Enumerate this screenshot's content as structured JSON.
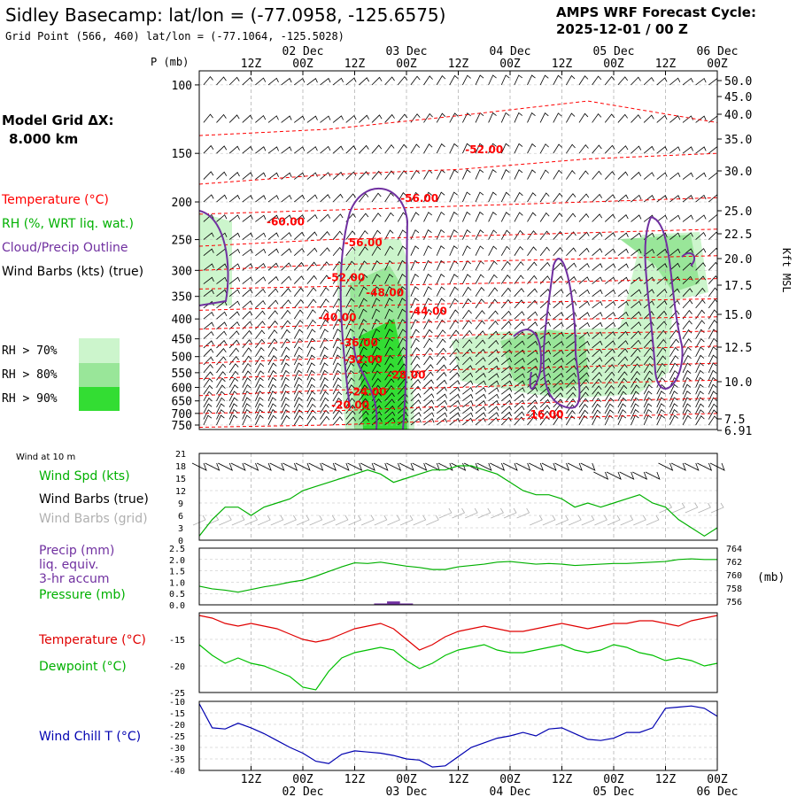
{
  "header": {
    "title": "Sidley Basecamp:  lat/lon = (-77.0958, -125.6575)",
    "subtitle": "Grid Point (566, 460) lat/lon = (-77.1064, -125.5028)",
    "cycle_label": "AMPS WRF Forecast Cycle:",
    "cycle_value": "2025-12-01 / 00  Z"
  },
  "left_labels": {
    "grid_dx_label": "Model Grid ΔX:",
    "grid_dx_value": "8.000 km",
    "temperature": "Temperature (°C)",
    "rh": "RH (%, WRT liq. wat.)",
    "cloud": "Cloud/Precip Outline",
    "wind": "Wind Barbs (kts) (true)",
    "rh70": "RH > 70%",
    "rh80": "RH > 80%",
    "rh90": "RH > 90%"
  },
  "colors": {
    "temperature": "#ff0000",
    "rh": "#00b000",
    "cloud": "#7030a0",
    "wind": "#000000",
    "wind_grid": "#b0b0b0",
    "precip": "#7030a0",
    "pressure": "#00b000",
    "dewpoint": "#00c000",
    "windchill": "#0000b0",
    "rh70": "#ccf5cc",
    "rh80": "#99e699",
    "rh90": "#33dd33"
  },
  "time_axis": {
    "top_hours": [
      "12Z",
      "00Z",
      "12Z",
      "00Z",
      "12Z",
      "00Z",
      "12Z",
      "00Z",
      "12Z",
      "00Z"
    ],
    "top_dates": [
      "02 Dec",
      "03 Dec",
      "04 Dec",
      "05 Dec",
      "06 Dec"
    ],
    "bottom_hours": [
      "12Z",
      "00Z",
      "12Z",
      "00Z",
      "12Z",
      "00Z",
      "12Z",
      "00Z",
      "12Z",
      "00Z"
    ],
    "bottom_dates": [
      "02 Dec",
      "03 Dec",
      "04 Dec",
      "05 Dec",
      "06 Dec"
    ]
  },
  "chart_data": [
    {
      "type": "heatmap",
      "name": "upper-air cross-section",
      "ylabel": "P (mb)",
      "pressure_ticks": [
        "100",
        "150",
        "200",
        "250",
        "300",
        "350",
        "400",
        "450",
        "500",
        "550",
        "600",
        "650",
        "700",
        "750"
      ],
      "right_axis_label": "Kft MSL",
      "kft_ticks": [
        "50.0",
        "45.0",
        "40.0",
        "35.0",
        "30.0",
        "25.0",
        "22.5",
        "20.0",
        "17.5",
        "15.0",
        "12.5",
        "10.0",
        "7.5",
        "6.91"
      ],
      "temperature_labels": [
        {
          "text": "-52.00",
          "hours": 66,
          "p": 150
        },
        {
          "text": "-56.00",
          "hours": 51,
          "p": 200
        },
        {
          "text": "-60.00",
          "hours": 20,
          "p": 230
        },
        {
          "text": "-56.00",
          "hours": 38,
          "p": 260
        },
        {
          "text": "-52.00",
          "hours": 34,
          "p": 320
        },
        {
          "text": "-48.00",
          "hours": 43,
          "p": 350
        },
        {
          "text": "-44.00",
          "hours": 53,
          "p": 390
        },
        {
          "text": "-40.00",
          "hours": 32,
          "p": 405
        },
        {
          "text": "-36.00",
          "hours": 37,
          "p": 470
        },
        {
          "text": "-32.00",
          "hours": 38,
          "p": 520
        },
        {
          "text": "-28.00",
          "hours": 48,
          "p": 570
        },
        {
          "text": "-24.00",
          "hours": 39,
          "p": 630
        },
        {
          "text": "-20.00",
          "hours": 35,
          "p": 680
        },
        {
          "text": "-16.00",
          "hours": 80,
          "p": 720
        }
      ]
    },
    {
      "type": "line",
      "name": "10 m wind",
      "title": "Wind at 10 m",
      "series_labels": [
        "Wind Spd (kts)",
        "Wind Barbs (true)",
        "Wind Barbs (grid)"
      ],
      "y_ticks": [
        "0",
        "3",
        "6",
        "9",
        "12",
        "15",
        "18",
        "21"
      ],
      "ylim": [
        0,
        21
      ],
      "x_hours": [
        0,
        3,
        6,
        9,
        12,
        15,
        18,
        21,
        24,
        27,
        30,
        33,
        36,
        39,
        42,
        45,
        48,
        51,
        54,
        57,
        60,
        63,
        66,
        69,
        72,
        75,
        78,
        81,
        84,
        87,
        90,
        93,
        96,
        99,
        102,
        105,
        108,
        111,
        114,
        117,
        120
      ],
      "wind_speed": [
        1,
        5,
        8,
        8,
        6,
        8,
        9,
        10,
        12,
        13,
        14,
        15,
        16,
        17,
        16,
        14,
        15,
        16,
        17,
        17,
        18,
        18,
        17,
        16,
        14,
        12,
        11,
        11,
        10,
        8,
        9,
        8,
        9,
        10,
        11,
        9,
        8,
        5,
        3,
        1,
        3
      ]
    },
    {
      "type": "line",
      "name": "precip and pressure",
      "series_labels": [
        "Precip (mm)",
        "liq. equiv.",
        "3-hr accum",
        "Pressure (mb)"
      ],
      "left_ticks": [
        "0.0",
        "0.5",
        "1.0",
        "1.5",
        "2.0",
        "2.5"
      ],
      "right_ticks": [
        "756",
        "758",
        "760",
        "762",
        "764"
      ],
      "right_unit": "(mb)",
      "precip_ylim": [
        0,
        2.5
      ],
      "pressure_ylim": [
        755.5,
        764
      ],
      "x_hours": [
        0,
        3,
        6,
        9,
        12,
        15,
        18,
        21,
        24,
        27,
        30,
        33,
        36,
        39,
        42,
        45,
        48,
        51,
        54,
        57,
        60,
        63,
        66,
        69,
        72,
        75,
        78,
        81,
        84,
        87,
        90,
        93,
        96,
        99,
        102,
        105,
        108,
        111,
        114,
        117,
        120
      ],
      "pressure": [
        758.3,
        757.9,
        757.7,
        757.4,
        757.8,
        758.2,
        758.5,
        758.9,
        759.2,
        759.8,
        760.5,
        761.2,
        761.8,
        761.7,
        761.9,
        761.6,
        761.3,
        761.1,
        760.8,
        760.8,
        761.2,
        761.4,
        761.6,
        761.9,
        762.0,
        761.8,
        761.6,
        761.7,
        761.6,
        761.4,
        761.5,
        761.6,
        761.7,
        761.7,
        761.8,
        761.9,
        762.0,
        762.3,
        762.4,
        762.3,
        762.3
      ],
      "precip": [
        {
          "hours": 42,
          "value": 0.06
        },
        {
          "hours": 45,
          "value": 0.15
        },
        {
          "hours": 48,
          "value": 0.06
        }
      ]
    },
    {
      "type": "line",
      "name": "temperature and dewpoint",
      "series_labels": [
        "Temperature (°C)",
        "Dewpoint (°C)"
      ],
      "y_ticks": [
        "-15",
        "-20",
        "-25"
      ],
      "ylim": [
        -25,
        -10
      ],
      "x_hours": [
        0,
        3,
        6,
        9,
        12,
        15,
        18,
        21,
        24,
        27,
        30,
        33,
        36,
        39,
        42,
        45,
        48,
        51,
        54,
        57,
        60,
        63,
        66,
        69,
        72,
        75,
        78,
        81,
        84,
        87,
        90,
        93,
        96,
        99,
        102,
        105,
        108,
        111,
        114,
        117,
        120
      ],
      "temperature": [
        -10.5,
        -11,
        -12,
        -12.5,
        -12,
        -12.5,
        -13,
        -14,
        -15,
        -15.5,
        -15,
        -14,
        -13,
        -12.5,
        -12,
        -13,
        -15,
        -17,
        -16,
        -14.5,
        -13.5,
        -13,
        -12.5,
        -13,
        -13.5,
        -13.5,
        -13,
        -12.5,
        -12,
        -12.5,
        -13,
        -12.5,
        -12,
        -12,
        -11.5,
        -11.5,
        -12,
        -12.5,
        -11.5,
        -11,
        -10.5
      ],
      "dewpoint": [
        -16,
        -18,
        -19.5,
        -18.5,
        -19.5,
        -20,
        -21,
        -22,
        -24,
        -24.5,
        -21,
        -18.5,
        -17.5,
        -17,
        -16.5,
        -17,
        -19,
        -20.5,
        -19.5,
        -18,
        -17,
        -16.5,
        -16,
        -17,
        -17.5,
        -17.5,
        -17,
        -16.5,
        -16,
        -17,
        -17.5,
        -17,
        -16,
        -16.5,
        -17.5,
        -18,
        -19,
        -18.5,
        -19,
        -20,
        -19.5
      ]
    },
    {
      "type": "line",
      "name": "wind chill",
      "series_labels": [
        "Wind Chill T (°C)"
      ],
      "y_ticks": [
        "-10",
        "-15",
        "-20",
        "-25",
        "-30",
        "-35",
        "-40"
      ],
      "ylim": [
        -40,
        -10
      ],
      "x_hours": [
        0,
        3,
        6,
        9,
        12,
        15,
        18,
        21,
        24,
        27,
        30,
        33,
        36,
        39,
        42,
        45,
        48,
        51,
        54,
        57,
        60,
        63,
        66,
        69,
        72,
        75,
        78,
        81,
        84,
        87,
        90,
        93,
        96,
        99,
        102,
        105,
        108,
        111,
        114,
        117,
        120
      ],
      "windchill": [
        -11,
        -21.5,
        -22,
        -19.5,
        -21.5,
        -24,
        -27,
        -30,
        -32.5,
        -36,
        -37,
        -33,
        -31.5,
        -32,
        -32.5,
        -33.5,
        -35,
        -35.5,
        -38.5,
        -38,
        -34,
        -30,
        -28,
        -26,
        -25,
        -23.5,
        -25,
        -22,
        -21.5,
        -24,
        -26.5,
        -27,
        -26,
        -23.5,
        -23.5,
        -21.5,
        -13,
        -12.5,
        -12,
        -13,
        -16.5
      ]
    }
  ]
}
